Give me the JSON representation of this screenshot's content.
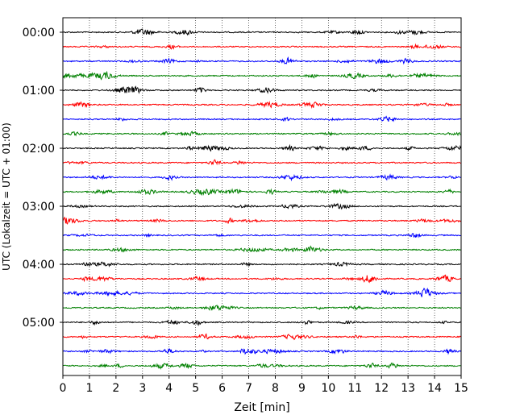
{
  "chart_data": {
    "type": "line",
    "title": "",
    "xlabel": "Zeit  [min]",
    "ylabel": "UTC (Lokalzeit = UTC + 01:00)",
    "xlim": [
      0,
      15
    ],
    "x_ticks": [
      "0",
      "1",
      "2",
      "3",
      "4",
      "5",
      "6",
      "7",
      "8",
      "9",
      "10",
      "11",
      "12",
      "13",
      "14",
      "15"
    ],
    "y_tick_labels": [
      "00:00",
      "01:00",
      "02:00",
      "03:00",
      "04:00",
      "05:00"
    ],
    "traces_per_hour": 4,
    "trace_minutes": 15,
    "trace_colors": [
      "#000000",
      "#ff0000",
      "#0000ff",
      "#008000"
    ],
    "grid": "vertical dotted",
    "trace_count": 24,
    "legend": "none"
  }
}
